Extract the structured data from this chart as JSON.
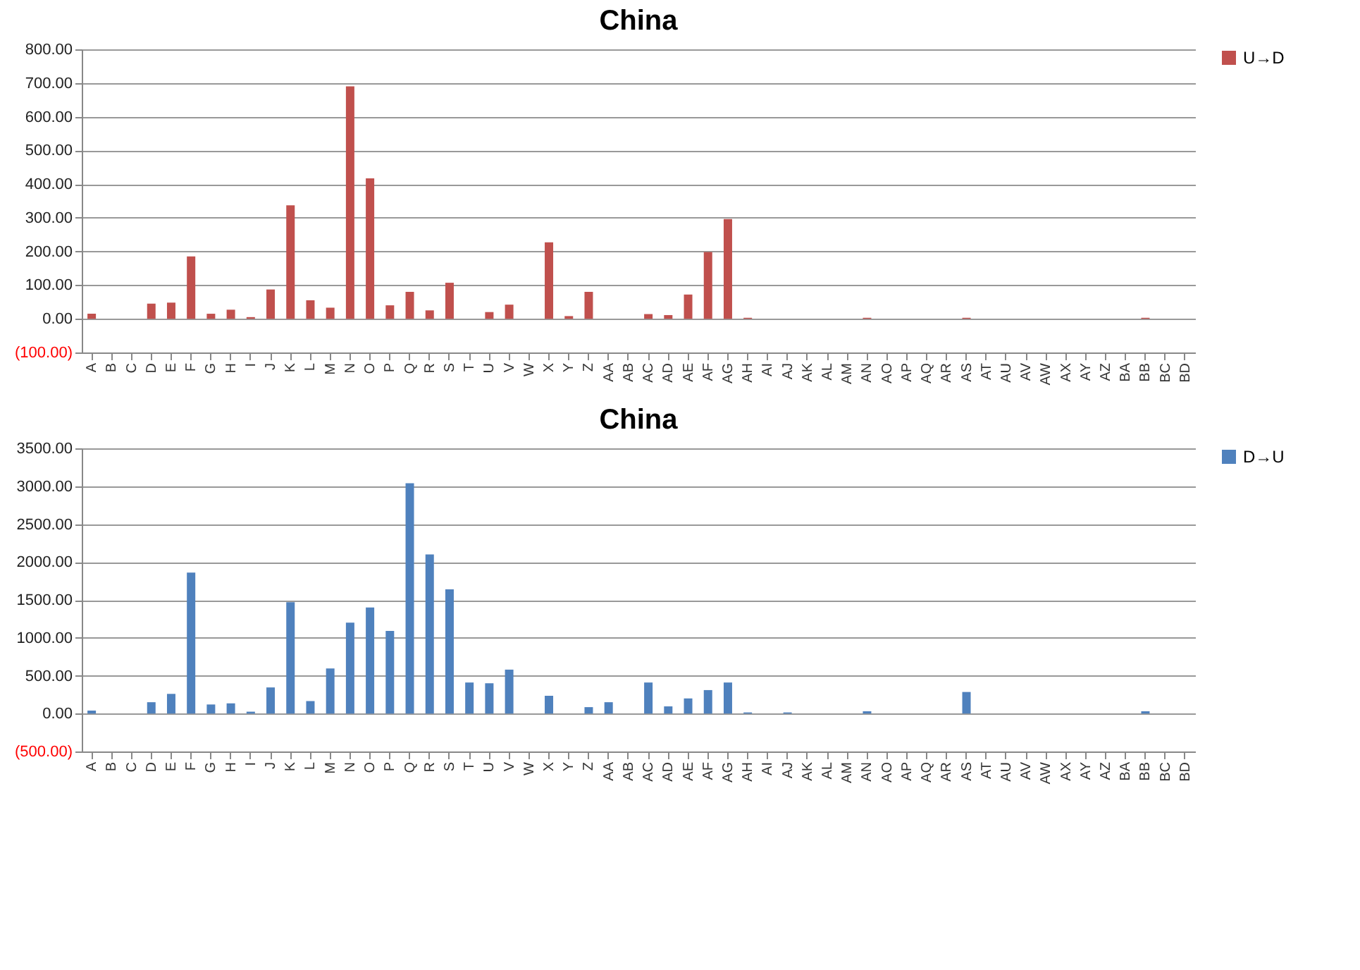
{
  "chart_data": [
    {
      "type": "bar",
      "title": "China",
      "categories": [
        "A",
        "B",
        "C",
        "D",
        "E",
        "F",
        "G",
        "H",
        "I",
        "J",
        "K",
        "L",
        "M",
        "N",
        "O",
        "P",
        "Q",
        "R",
        "S",
        "T",
        "U",
        "V",
        "W",
        "X",
        "Y",
        "Z",
        "AA",
        "AB",
        "AC",
        "AD",
        "AE",
        "AF",
        "AG",
        "AH",
        "AI",
        "AJ",
        "AK",
        "AL",
        "AM",
        "AN",
        "AO",
        "AP",
        "AQ",
        "AR",
        "AS",
        "AT",
        "AU",
        "AV",
        "AW",
        "AX",
        "AY",
        "AZ",
        "BA",
        "BB",
        "BC",
        "BD"
      ],
      "series": [
        {
          "name": "U→D",
          "color": "#c0504d",
          "values": [
            15,
            0,
            0,
            45,
            48,
            185,
            15,
            27,
            5,
            87,
            337,
            55,
            33,
            690,
            417,
            40,
            80,
            25,
            107,
            0,
            20,
            42,
            0,
            227,
            8,
            80,
            0,
            0,
            14,
            11,
            72,
            198,
            296,
            3,
            0,
            0,
            0,
            0,
            0,
            3,
            0,
            0,
            0,
            0,
            3,
            0,
            0,
            0,
            0,
            0,
            0,
            0,
            0,
            3,
            0,
            0
          ]
        }
      ],
      "ylim": [
        -100,
        800
      ],
      "yticks": [
        {
          "value": -100,
          "label": "(100.00)"
        },
        {
          "value": 0,
          "label": "0.00"
        },
        {
          "value": 100,
          "label": "100.00"
        },
        {
          "value": 200,
          "label": "200.00"
        },
        {
          "value": 300,
          "label": "300.00"
        },
        {
          "value": 400,
          "label": "400.00"
        },
        {
          "value": 500,
          "label": "500.00"
        },
        {
          "value": 600,
          "label": "600.00"
        },
        {
          "value": 700,
          "label": "700.00"
        },
        {
          "value": 800,
          "label": "800.00"
        }
      ],
      "grid": "y",
      "legend": "right"
    },
    {
      "type": "bar",
      "title": "China",
      "categories": [
        "A",
        "B",
        "C",
        "D",
        "E",
        "F",
        "G",
        "H",
        "I",
        "J",
        "K",
        "L",
        "M",
        "N",
        "O",
        "P",
        "Q",
        "R",
        "S",
        "T",
        "U",
        "V",
        "W",
        "X",
        "Y",
        "Z",
        "AA",
        "AB",
        "AC",
        "AD",
        "AE",
        "AF",
        "AG",
        "AH",
        "AI",
        "AJ",
        "AK",
        "AL",
        "AM",
        "AN",
        "AO",
        "AP",
        "AQ",
        "AR",
        "AS",
        "AT",
        "AU",
        "AV",
        "AW",
        "AX",
        "AY",
        "AZ",
        "BA",
        "BB",
        "BC",
        "BD"
      ],
      "series": [
        {
          "name": "D→U",
          "color": "#4f81bd",
          "values": [
            40,
            0,
            0,
            150,
            260,
            1860,
            120,
            135,
            25,
            345,
            1470,
            165,
            595,
            1200,
            1400,
            1090,
            3040,
            2100,
            1640,
            410,
            400,
            580,
            0,
            235,
            0,
            85,
            150,
            0,
            410,
            95,
            200,
            310,
            410,
            15,
            0,
            15,
            0,
            0,
            0,
            30,
            0,
            0,
            0,
            0,
            285,
            0,
            0,
            0,
            0,
            0,
            0,
            0,
            0,
            30,
            0,
            0
          ]
        }
      ],
      "ylim": [
        -500,
        3500
      ],
      "yticks": [
        {
          "value": -500,
          "label": "(500.00)"
        },
        {
          "value": 0,
          "label": "0.00"
        },
        {
          "value": 500,
          "label": "500.00"
        },
        {
          "value": 1000,
          "label": "1000.00"
        },
        {
          "value": 1500,
          "label": "1500.00"
        },
        {
          "value": 2000,
          "label": "2000.00"
        },
        {
          "value": 2500,
          "label": "2500.00"
        },
        {
          "value": 3000,
          "label": "3000.00"
        },
        {
          "value": 3500,
          "label": "3500.00"
        }
      ],
      "grid": "y",
      "legend": "right"
    }
  ]
}
